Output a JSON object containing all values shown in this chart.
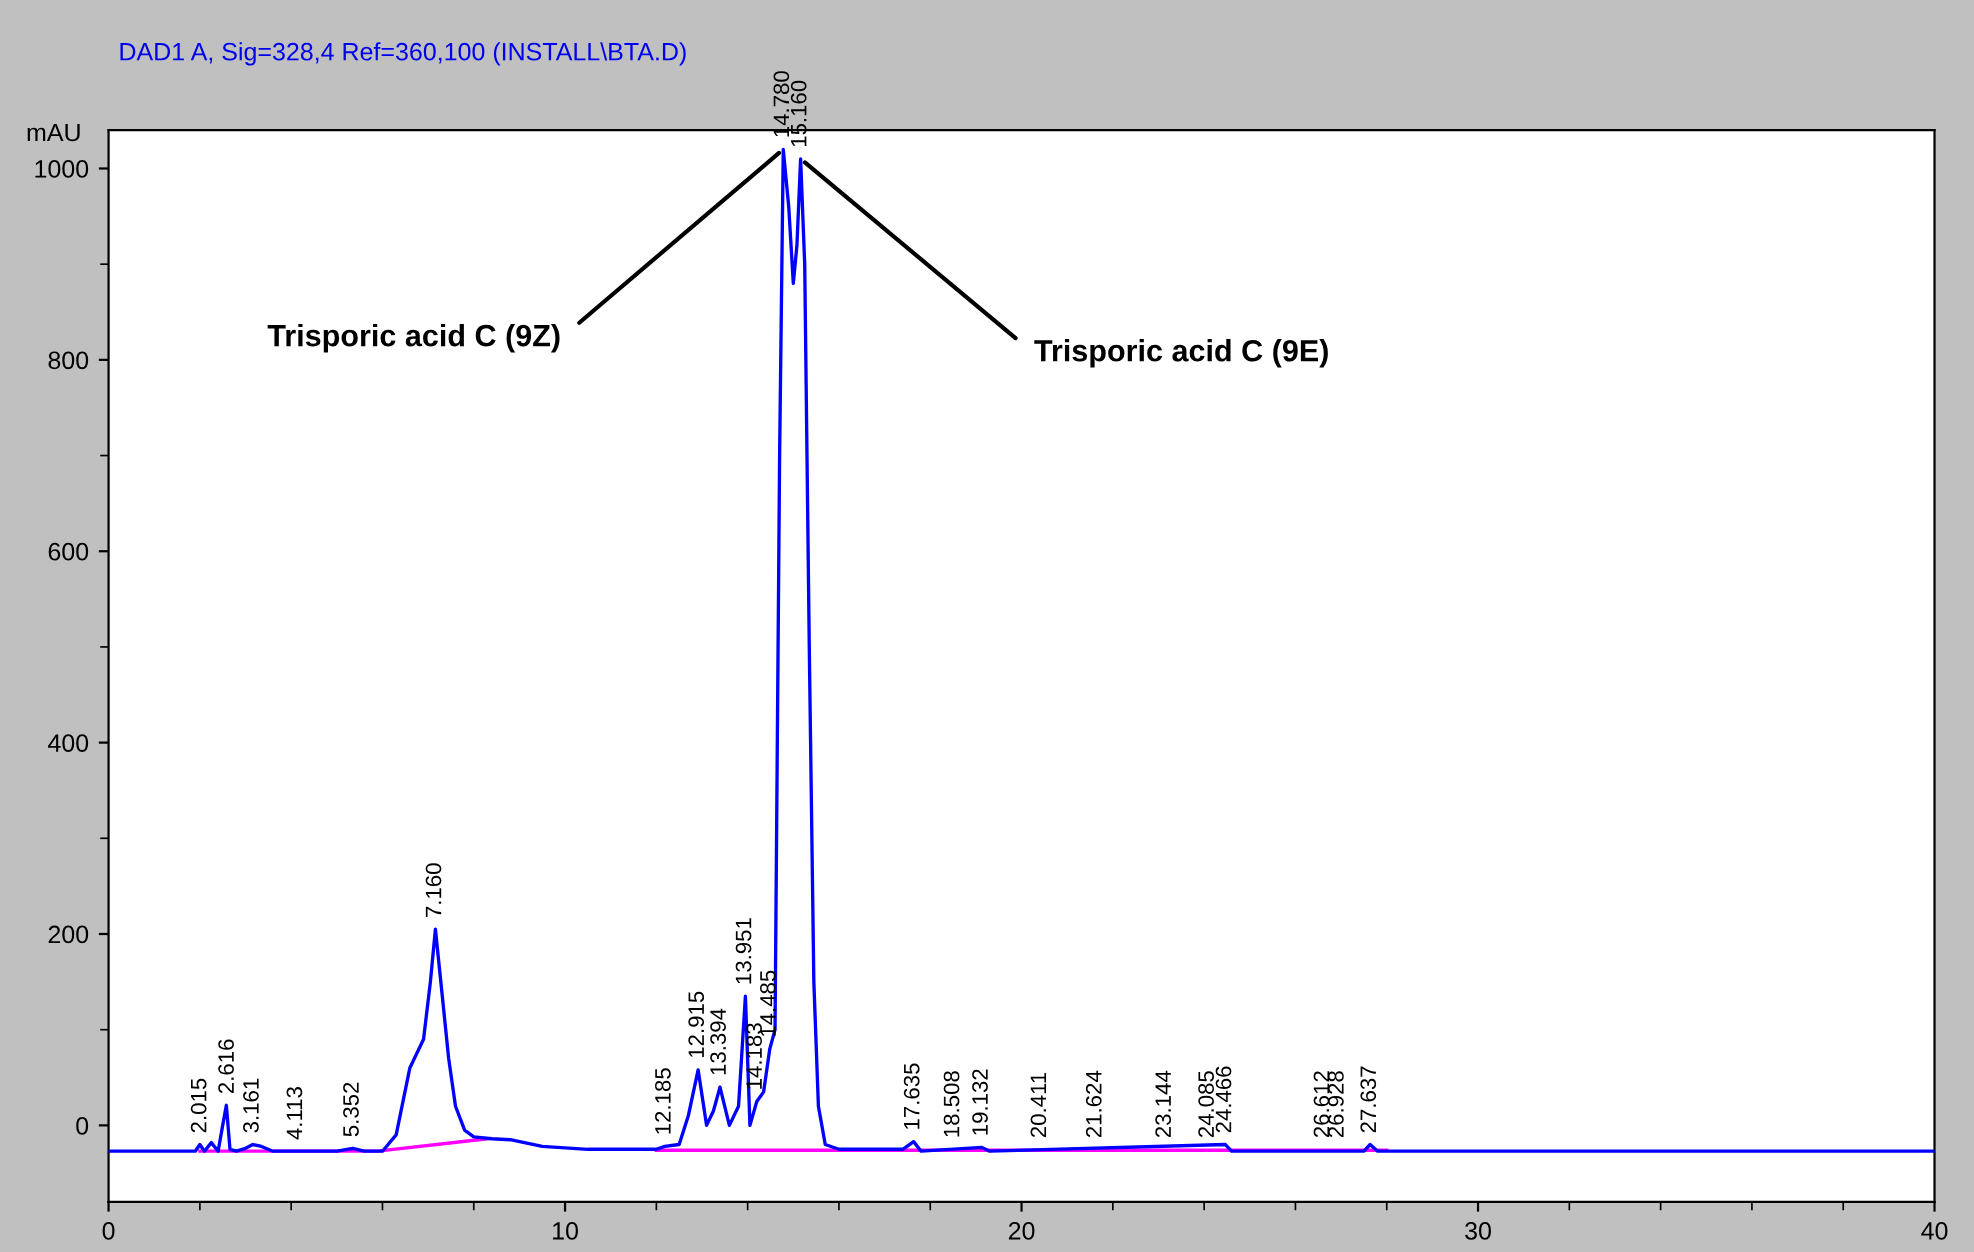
{
  "chart_data": {
    "type": "line",
    "title": "DAD1 A, Sig=328,4 Ref=360,100 (INSTALL\\BTA.D)",
    "ylabel": "mAU",
    "xlim": [
      0,
      40
    ],
    "ylim": [
      -80,
      1040
    ],
    "xticks": [
      0,
      10,
      20,
      30,
      40
    ],
    "yticks": [
      0,
      200,
      400,
      600,
      800,
      1000
    ],
    "grid": false,
    "legend": false,
    "marker": "none",
    "line_style": "solid",
    "series": [
      {
        "color": "#0000ff",
        "x": [
          0,
          1.9,
          2.0,
          2.1,
          2.25,
          2.4,
          2.5,
          2.58,
          2.66,
          2.8,
          3.0,
          3.16,
          3.35,
          3.6,
          4.1,
          5.0,
          5.35,
          5.6,
          6.0,
          6.3,
          6.6,
          6.9,
          7.05,
          7.16,
          7.3,
          7.45,
          7.6,
          7.8,
          8.0,
          8.4,
          8.8,
          9.5,
          10.5,
          12.0,
          12.185,
          12.5,
          12.7,
          12.915,
          13.1,
          13.25,
          13.394,
          13.6,
          13.8,
          13.951,
          14.05,
          14.2,
          14.35,
          14.485,
          14.6,
          14.7,
          14.78,
          14.9,
          15.0,
          15.08,
          15.16,
          15.25,
          15.35,
          15.45,
          15.55,
          15.7,
          16.0,
          17.4,
          17.635,
          17.8,
          19.132,
          19.3,
          24.466,
          24.6,
          27.5,
          27.637,
          27.8,
          28.3,
          40
        ],
        "values": [
          -27,
          -27,
          -20,
          -27,
          -18,
          -27,
          0,
          21,
          -25,
          -27,
          -24,
          -20,
          -22,
          -27,
          -27,
          -27,
          -24,
          -27,
          -27,
          -10,
          60,
          90,
          150,
          205,
          140,
          70,
          20,
          -5,
          -12,
          -14,
          -15,
          -22,
          -25,
          -25,
          -22,
          -20,
          10,
          58,
          0,
          15,
          40,
          0,
          20,
          135,
          0,
          25,
          35,
          80,
          100,
          700,
          1020,
          960,
          880,
          920,
          1010,
          900,
          500,
          150,
          20,
          -20,
          -25,
          -25,
          -17,
          -27,
          -23,
          -27,
          -20,
          -27,
          -27,
          -20,
          -27,
          -27,
          -27
        ]
      },
      {
        "color": "#ff00ff",
        "x": [
          2.0,
          5.9,
          8.3,
          8.4,
          12.0,
          28.0
        ],
        "values": [
          -27,
          -27,
          -14,
          null,
          -26,
          -26
        ]
      }
    ],
    "annotations": [
      {
        "text": "2.015",
        "x": 2.015,
        "y": -20
      },
      {
        "text": "2.616",
        "x": 2.616,
        "y": 21
      },
      {
        "text": "3.161",
        "x": 3.161,
        "y": -20
      },
      {
        "text": "4.113",
        "x": 4.113,
        "y": -27
      },
      {
        "text": "5.352",
        "x": 5.352,
        "y": -24
      },
      {
        "text": "7.160",
        "x": 7.16,
        "y": 205
      },
      {
        "text": "12.185",
        "x": 12.185,
        "y": -22
      },
      {
        "text": "12.915",
        "x": 12.915,
        "y": 58
      },
      {
        "text": "13.394",
        "x": 13.394,
        "y": 40
      },
      {
        "text": "13.951",
        "x": 13.951,
        "y": 135
      },
      {
        "text": "14.183",
        "x": 14.183,
        "y": 25
      },
      {
        "text": "14.485",
        "x": 14.485,
        "y": 80
      },
      {
        "text": "14.780",
        "x": 14.78,
        "y": 1020
      },
      {
        "text": "15.160",
        "x": 15.16,
        "y": 1010
      },
      {
        "text": "17.635",
        "x": 17.635,
        "y": -17
      },
      {
        "text": "18.508",
        "x": 18.508,
        "y": -25
      },
      {
        "text": "19.132",
        "x": 19.132,
        "y": -23
      },
      {
        "text": "20.411",
        "x": 20.411,
        "y": -25
      },
      {
        "text": "21.624",
        "x": 21.624,
        "y": -25
      },
      {
        "text": "23.144",
        "x": 23.144,
        "y": -25
      },
      {
        "text": "24.085",
        "x": 24.085,
        "y": -25
      },
      {
        "text": "24.466",
        "x": 24.466,
        "y": -20
      },
      {
        "text": "26.612",
        "x": 26.612,
        "y": -25
      },
      {
        "text": "26.928",
        "x": 26.928,
        "y": -25
      },
      {
        "text": "27.637",
        "x": 27.637,
        "y": -20
      },
      {
        "text": "Trisporic acid C (9Z)",
        "x": 14.78,
        "y": 1020
      },
      {
        "text": "Trisporic acid C (9E)",
        "x": 15.16,
        "y": 1010
      }
    ]
  }
}
